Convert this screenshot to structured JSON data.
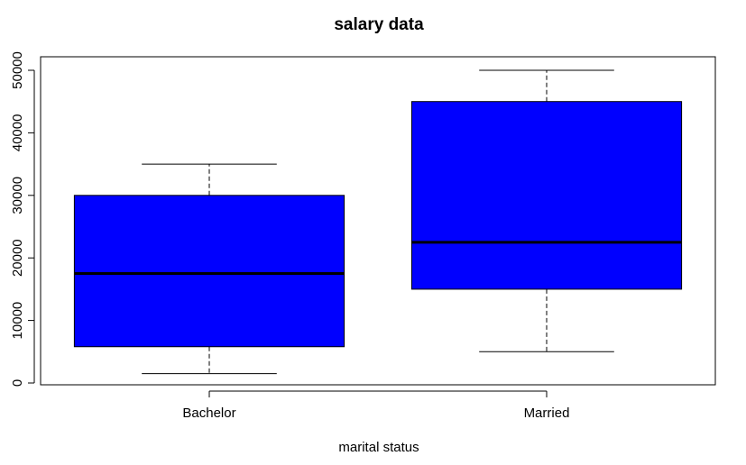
{
  "chart_data": {
    "type": "boxplot",
    "title": "salary data",
    "xlabel": "marital status",
    "ylabel": "",
    "ylim": [
      0,
      50000
    ],
    "yticks": [
      0,
      10000,
      20000,
      30000,
      40000,
      50000
    ],
    "grid": false,
    "legend": "none",
    "box_color": "#0000ff",
    "categories": [
      "Bachelor",
      "Married"
    ],
    "boxes": [
      {
        "label": "Bachelor",
        "whisker_low": 1500,
        "q1": 5800,
        "median": 17500,
        "q3": 30000,
        "whisker_high": 35000
      },
      {
        "label": "Married",
        "whisker_low": 5000,
        "q1": 15000,
        "median": 22500,
        "q3": 45000,
        "whisker_high": 50000
      }
    ]
  }
}
